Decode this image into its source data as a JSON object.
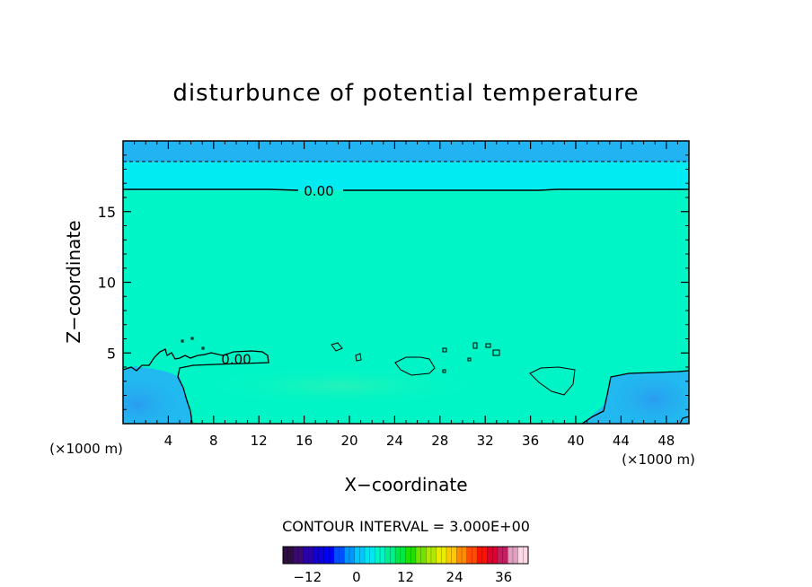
{
  "chart_data": {
    "type": "heatmap",
    "title": "disturbunce of potential temperature",
    "xlabel": "X−coordinate",
    "ylabel": "Z−coordinate",
    "x_unit": "(×1000 m)",
    "y_unit": "(×1000 m)",
    "xlim": [
      0,
      50
    ],
    "ylim": [
      0,
      20
    ],
    "x_ticks": [
      4,
      8,
      12,
      16,
      20,
      24,
      28,
      32,
      36,
      40,
      44,
      48
    ],
    "x_tick_labels": [
      "4",
      "8",
      "12",
      "16",
      "20",
      "24",
      "28",
      "32",
      "36",
      "40",
      "44",
      "48"
    ],
    "y_ticks": [
      5,
      10,
      15
    ],
    "y_tick_labels": [
      "5",
      "10",
      "15"
    ],
    "contour_interval_text": "CONTOUR INTERVAL = 3.000E+00",
    "contour_interval": 3.0,
    "contour_labels": [
      {
        "text": "0.00",
        "x": 17.3,
        "z": 16.5
      },
      {
        "text": "0.00",
        "x": 10.0,
        "z": 4.6
      }
    ],
    "fields": [
      {
        "name": "upper-layer",
        "z0": 18.5,
        "z1": 20,
        "value": -9,
        "color": "#22b4f2"
      },
      {
        "name": "mid-upper-layer",
        "z0": 16.5,
        "z1": 18.5,
        "value": -3,
        "color": "#00ecf2"
      },
      {
        "name": "interior",
        "z0": 0,
        "z1": 16.5,
        "value": 0,
        "color": "#00f5c6"
      }
    ],
    "colorbar": {
      "min": -18,
      "max": 42,
      "tick_values": [
        -12,
        0,
        12,
        24,
        36
      ],
      "tick_labels": [
        "−12",
        "0",
        "12",
        "24",
        "36"
      ],
      "colors": [
        "#2e0d40",
        "#3a0a70",
        "#2a00a8",
        "#1000d8",
        "#0000ff",
        "#0050ff",
        "#0096ff",
        "#00c8ff",
        "#00e6f0",
        "#00f5c6",
        "#00f090",
        "#00e848",
        "#20e000",
        "#70e400",
        "#b0e800",
        "#e8ec00",
        "#ffc800",
        "#ff8c00",
        "#ff4c00",
        "#ff1000",
        "#e00030",
        "#c02060",
        "#e0a0c0",
        "#ffd8e8"
      ]
    }
  }
}
